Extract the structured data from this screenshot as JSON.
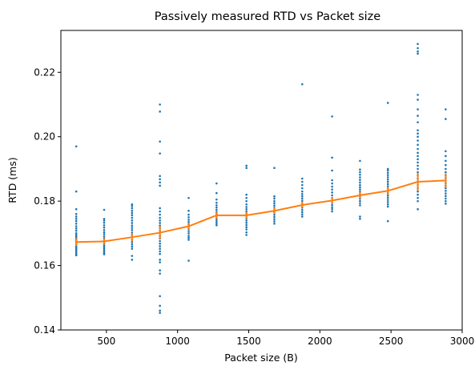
{
  "chart_data": {
    "type": "scatter",
    "title": "Passively measured RTD vs Packet size",
    "xlabel": "Packet size (B)",
    "ylabel": "RTD (ms)",
    "xlim": [
      180,
      3000
    ],
    "ylim": [
      0.14,
      0.233
    ],
    "x_ticks": [
      500,
      1000,
      1500,
      2000,
      2500,
      3000
    ],
    "x_tick_labels": [
      "500",
      "1000",
      "1500",
      "2000",
      "2500",
      "3000"
    ],
    "y_ticks": [
      0.14,
      0.16,
      0.18,
      0.2,
      0.22
    ],
    "y_tick_labels": [
      "0.14",
      "0.16",
      "0.18",
      "0.20",
      "0.22"
    ],
    "grid": false,
    "colors": {
      "scatter": "#1f77b4",
      "mean_line": "#ff7f0e"
    },
    "series": [
      {
        "kind": "scatter",
        "groups": [
          {
            "x": 288,
            "values": [
              0.197,
              0.183,
              0.1775,
              0.176,
              0.1752,
              0.1745,
              0.1738,
              0.173,
              0.1722,
              0.1715,
              0.1708,
              0.17,
              0.1695,
              0.169,
              0.1685,
              0.168,
              0.1675,
              0.167,
              0.1665,
              0.166,
              0.1655,
              0.165,
              0.1645,
              0.164,
              0.1635,
              0.1632
            ]
          },
          {
            "x": 484,
            "values": [
              0.1773,
              0.1745,
              0.174,
              0.1733,
              0.1725,
              0.1718,
              0.171,
              0.1703,
              0.1697,
              0.169,
              0.1684,
              0.1678,
              0.1672,
              0.1667,
              0.1662,
              0.1657,
              0.1652,
              0.1647,
              0.1642,
              0.1638,
              0.1635
            ]
          },
          {
            "x": 680,
            "values": [
              0.179,
              0.1785,
              0.1778,
              0.177,
              0.1763,
              0.1756,
              0.1748,
              0.174,
              0.1732,
              0.1724,
              0.1717,
              0.171,
              0.1702,
              0.1695,
              0.1688,
              0.168,
              0.1673,
              0.1666,
              0.1659,
              0.1652,
              0.163,
              0.1618
            ]
          },
          {
            "x": 876,
            "values": [
              0.21,
              0.2078,
              0.1985,
              0.1948,
              0.1878,
              0.1868,
              0.1858,
              0.1848,
              0.1778,
              0.1768,
              0.1758,
              0.1748,
              0.174,
              0.1732,
              0.1724,
              0.1716,
              0.1708,
              0.17,
              0.1692,
              0.1684,
              0.1676,
              0.1668,
              0.166,
              0.1652,
              0.1644,
              0.1636,
              0.1618,
              0.161,
              0.1585,
              0.1575,
              0.1505,
              0.1475,
              0.146,
              0.1453
            ]
          },
          {
            "x": 1078,
            "values": [
              0.181,
              0.177,
              0.1758,
              0.175,
              0.1742,
              0.1735,
              0.1728,
              0.1721,
              0.1714,
              0.1707,
              0.17,
              0.1692,
              0.1686,
              0.168,
              0.1615
            ]
          },
          {
            "x": 1274,
            "values": [
              0.1855,
              0.1825,
              0.1805,
              0.1795,
              0.1787,
              0.178,
              0.1773,
              0.1766,
              0.176,
              0.1754,
              0.1748,
              0.1742,
              0.1736,
              0.173,
              0.1725
            ]
          },
          {
            "x": 1484,
            "values": [
              0.191,
              0.1903,
              0.182,
              0.181,
              0.18,
              0.179,
              0.1782,
              0.1775,
              0.1768,
              0.1761,
              0.1754,
              0.1747,
              0.174,
              0.1733,
              0.1726,
              0.1719,
              0.1712,
              0.1703,
              0.1695
            ]
          },
          {
            "x": 1680,
            "values": [
              0.1903,
              0.1815,
              0.1808,
              0.18,
              0.1793,
              0.1786,
              0.1779,
              0.1772,
              0.1765,
              0.1758,
              0.1751,
              0.1744,
              0.1737,
              0.173
            ]
          },
          {
            "x": 1876,
            "values": [
              0.2163,
              0.187,
              0.186,
              0.185,
              0.184,
              0.183,
              0.1822,
              0.1815,
              0.1808,
              0.1801,
              0.1794,
              0.1787,
              0.178,
              0.1773,
              0.1766,
              0.1759,
              0.1752
            ]
          },
          {
            "x": 2086,
            "values": [
              0.2063,
              0.1935,
              0.1895,
              0.1865,
              0.1855,
              0.1845,
              0.1836,
              0.1827,
              0.1818,
              0.181,
              0.1802,
              0.1795,
              0.1788,
              0.1781,
              0.1775,
              0.1768
            ]
          },
          {
            "x": 2282,
            "values": [
              0.1925,
              0.1898,
              0.189,
              0.1882,
              0.1874,
              0.1866,
              0.1858,
              0.185,
              0.1843,
              0.1836,
              0.1829,
              0.1822,
              0.1815,
              0.1808,
              0.1801,
              0.1794,
              0.1787,
              0.1752,
              0.1745
            ]
          },
          {
            "x": 2478,
            "values": [
              0.2105,
              0.19,
              0.1895,
              0.1888,
              0.1881,
              0.1874,
              0.1867,
              0.186,
              0.1853,
              0.1846,
              0.1839,
              0.1832,
              0.1825,
              0.1818,
              0.1811,
              0.1804,
              0.1797,
              0.179,
              0.1783,
              0.1738
            ]
          },
          {
            "x": 2688,
            "values": [
              0.2288,
              0.2275,
              0.2265,
              0.2258,
              0.213,
              0.2115,
              0.2085,
              0.2065,
              0.2045,
              0.202,
              0.201,
              0.2,
              0.1988,
              0.1975,
              0.1962,
              0.195,
              0.194,
              0.193,
              0.192,
              0.191,
              0.19,
              0.189,
              0.188,
              0.187,
              0.186,
              0.185,
              0.184,
              0.183,
              0.182,
              0.181,
              0.18,
              0.1775
            ]
          },
          {
            "x": 2884,
            "values": [
              0.2085,
              0.2055,
              0.1955,
              0.194,
              0.1925,
              0.1912,
              0.19,
              0.189,
              0.188,
              0.1872,
              0.1864,
              0.1856,
              0.1848,
              0.184,
              0.1832,
              0.1824,
              0.1816,
              0.1808,
              0.18,
              0.1792
            ]
          }
        ]
      },
      {
        "kind": "line_errorbar",
        "x": [
          288,
          484,
          680,
          876,
          1078,
          1274,
          1484,
          1680,
          1876,
          2086,
          2282,
          2478,
          2688,
          2884
        ],
        "values": [
          0.1673,
          0.1675,
          0.1688,
          0.1702,
          0.1722,
          0.1756,
          0.1756,
          0.177,
          0.1788,
          0.1802,
          0.1818,
          0.1832,
          0.186,
          0.1864
        ],
        "errors": [
          0.0012,
          0.001,
          0.0013,
          0.002,
          0.001,
          0.001,
          0.001,
          0.001,
          0.0009,
          0.001,
          0.001,
          0.0012,
          0.0028,
          0.0022
        ]
      }
    ]
  }
}
